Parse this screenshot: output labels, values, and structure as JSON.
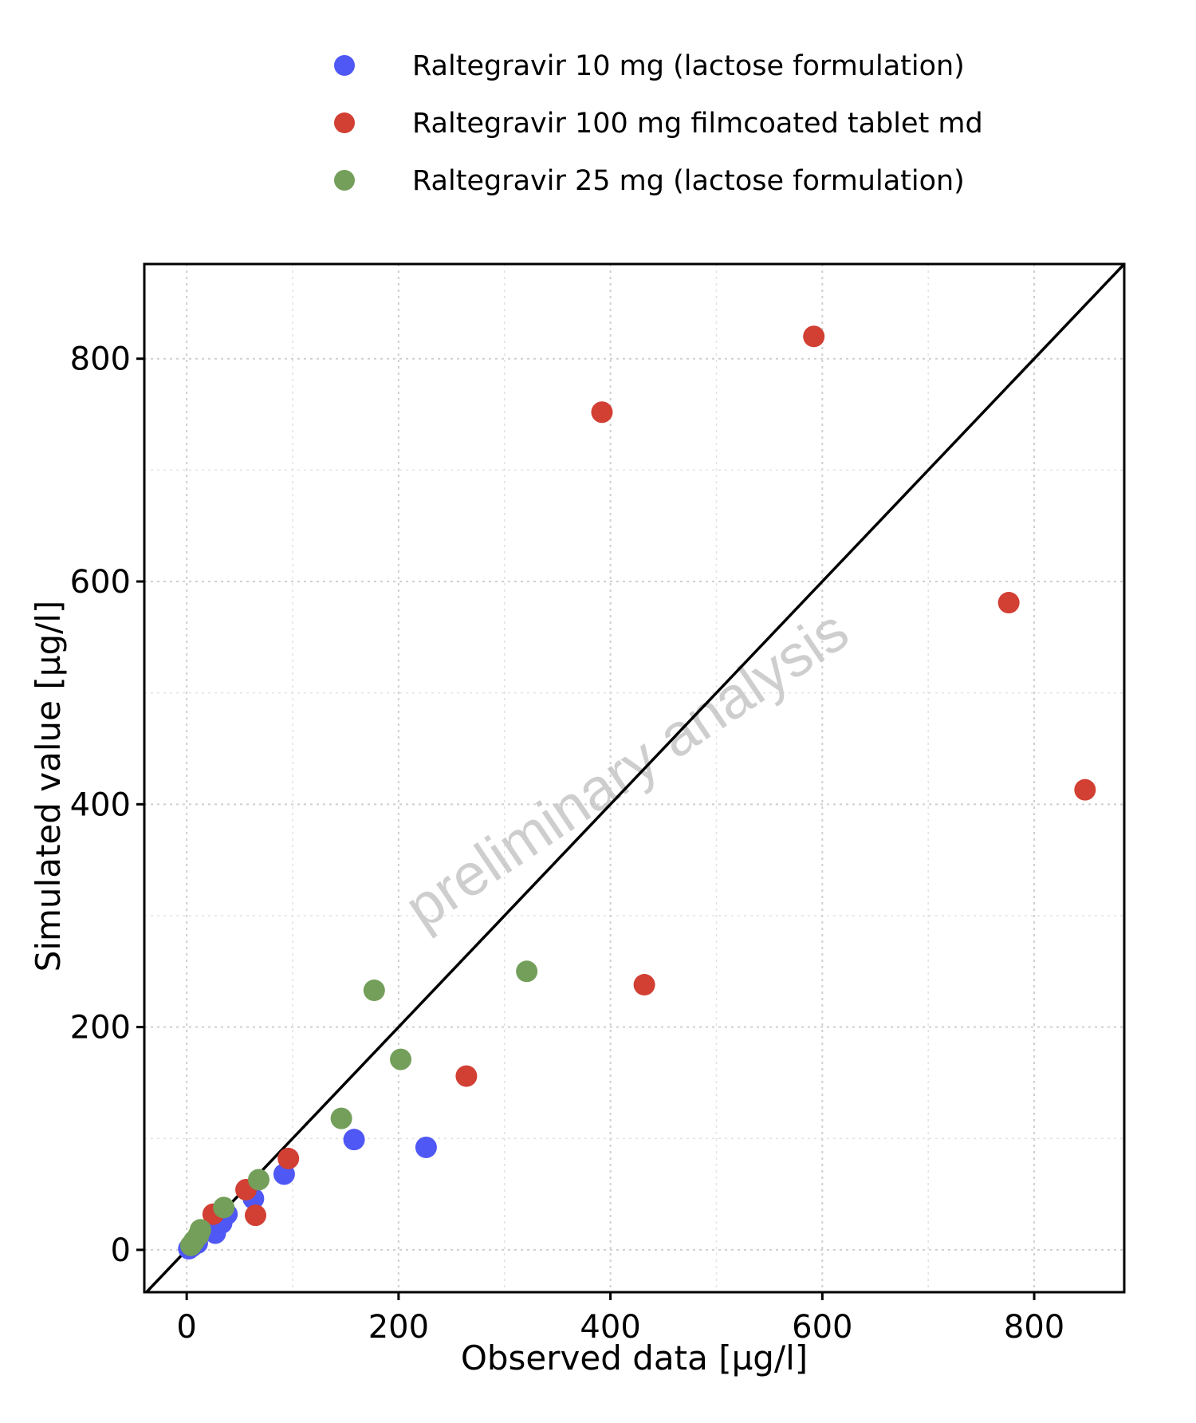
{
  "chart_data": {
    "type": "scatter",
    "xlabel": "Observed data [µg/l]",
    "ylabel": "Simulated value [µg/l]",
    "xlim": [
      -40,
      885
    ],
    "ylim": [
      -38,
      885
    ],
    "xticks": [
      0,
      200,
      400,
      600,
      800
    ],
    "yticks": [
      0,
      200,
      400,
      600,
      800
    ],
    "grid": true,
    "identity_line": true,
    "legend_position": "top",
    "watermark": "preliminary analysis",
    "series": [
      {
        "name": "Raltegravir 10 mg (lactose formulation)",
        "color": "#4f57f5",
        "points": [
          [
            2,
            1
          ],
          [
            5,
            3
          ],
          [
            10,
            6
          ],
          [
            27,
            15
          ],
          [
            33,
            24
          ],
          [
            38,
            32
          ],
          [
            63,
            46
          ],
          [
            92,
            68
          ],
          [
            158,
            99
          ],
          [
            226,
            92
          ]
        ]
      },
      {
        "name": "Raltegravir 100 mg filmcoated tablet md",
        "color": "#d23f33",
        "points": [
          [
            25,
            32
          ],
          [
            56,
            54
          ],
          [
            65,
            31
          ],
          [
            96,
            82
          ],
          [
            264,
            156
          ],
          [
            392,
            752
          ],
          [
            432,
            238
          ],
          [
            592,
            820
          ],
          [
            776,
            581
          ],
          [
            848,
            413
          ]
        ]
      },
      {
        "name": "Raltegravir 25 mg (lactose formulation)",
        "color": "#739f5a",
        "points": [
          [
            4,
            4
          ],
          [
            7,
            8
          ],
          [
            11,
            13
          ],
          [
            13,
            18
          ],
          [
            35,
            38
          ],
          [
            68,
            63
          ],
          [
            146,
            118
          ],
          [
            177,
            233
          ],
          [
            202,
            171
          ],
          [
            321,
            250
          ]
        ]
      }
    ]
  }
}
